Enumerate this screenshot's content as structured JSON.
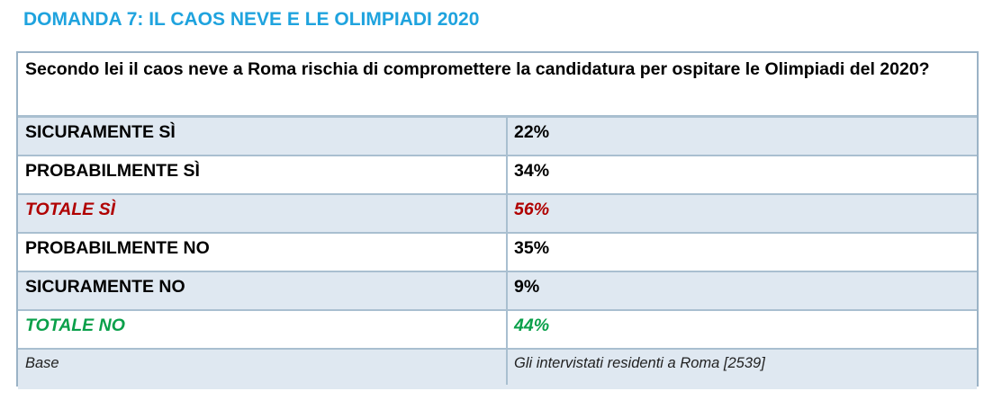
{
  "title": "DOMANDA 7: IL CAOS NEVE E LE OLIMPIADI 2020",
  "question": "Secondo lei il caos neve a Roma rischia di compromettere la candidatura per ospitare le Olimpiadi del 2020?",
  "rows": [
    {
      "label": "SICURAMENTE SÌ",
      "value": "22%"
    },
    {
      "label": "PROBABILMENTE SÌ",
      "value": "34%"
    },
    {
      "label": "TOTALE SÌ",
      "value": "56%"
    },
    {
      "label": "PROBABILMENTE NO",
      "value": "35%"
    },
    {
      "label": "SICURAMENTE NO",
      "value": "9%"
    },
    {
      "label": "TOTALE NO",
      "value": "44%"
    }
  ],
  "base": {
    "label": "Base",
    "value": "Gli intervistati residenti a Roma [2539]"
  },
  "colors": {
    "title": "#1fa3de",
    "total_yes": "#b00000",
    "total_no": "#0aa04a",
    "shade": "#dfe8f1",
    "border": "#a9bfd0"
  }
}
